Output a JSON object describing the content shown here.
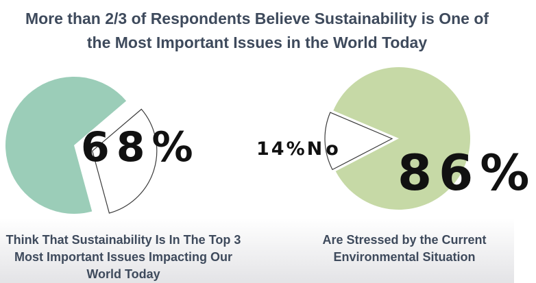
{
  "title": {
    "line1": "More than 2/3 of Respondents Believe Sustainability is One of",
    "line2": "the Most Important Issues in the World Today"
  },
  "chart_data": [
    {
      "type": "pie",
      "slices": [
        {
          "value": 68,
          "color": "#9bcdb8"
        },
        {
          "value": 32,
          "color": "#ffffff",
          "exploded": true
        }
      ],
      "label": "68%",
      "caption": [
        "Think That Sustainability Is In The Top 3",
        "Most Important Issues Impacting Our",
        "World Today"
      ]
    },
    {
      "type": "pie",
      "slices": [
        {
          "value": 86,
          "color": "#c6d9a6"
        },
        {
          "value": 14,
          "color": "#ffffff",
          "exploded": true
        }
      ],
      "label": "86%",
      "minor_label": {
        "pct": "14%",
        "text": "No"
      },
      "caption": [
        "Are Stressed by the Current",
        "Environmental Situation"
      ]
    }
  ]
}
